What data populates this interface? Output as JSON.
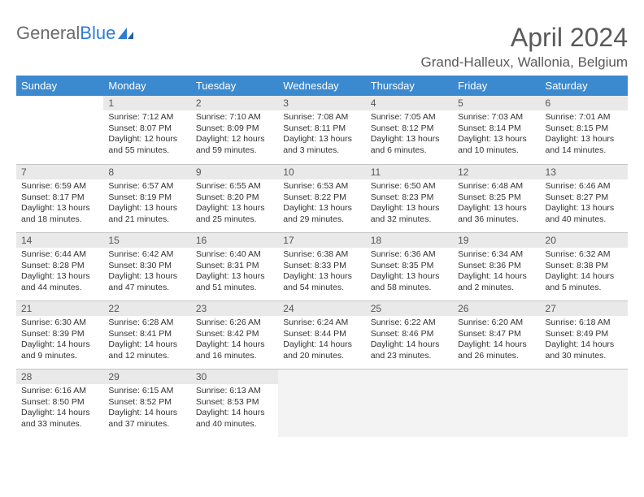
{
  "brand": {
    "part1": "General",
    "part2": "Blue"
  },
  "title": "April 2024",
  "location": "Grand-Halleux, Wallonia, Belgium",
  "colors": {
    "header_bg": "#3b8ad0",
    "header_text": "#ffffff",
    "daynum_bg": "#e9e9e9",
    "daynum_text": "#555555",
    "body_text": "#333333",
    "rule": "#c5c5c5",
    "title_color": "#5a5a5a",
    "brand_grey": "#6b6b6b",
    "brand_blue": "#2e7cd1"
  },
  "weekdays": [
    "Sunday",
    "Monday",
    "Tuesday",
    "Wednesday",
    "Thursday",
    "Friday",
    "Saturday"
  ],
  "weeks": [
    [
      {
        "n": "",
        "sr": "",
        "ss": "",
        "d1": "",
        "d2": ""
      },
      {
        "n": "1",
        "sr": "Sunrise: 7:12 AM",
        "ss": "Sunset: 8:07 PM",
        "d1": "Daylight: 12 hours",
        "d2": "and 55 minutes."
      },
      {
        "n": "2",
        "sr": "Sunrise: 7:10 AM",
        "ss": "Sunset: 8:09 PM",
        "d1": "Daylight: 12 hours",
        "d2": "and 59 minutes."
      },
      {
        "n": "3",
        "sr": "Sunrise: 7:08 AM",
        "ss": "Sunset: 8:11 PM",
        "d1": "Daylight: 13 hours",
        "d2": "and 3 minutes."
      },
      {
        "n": "4",
        "sr": "Sunrise: 7:05 AM",
        "ss": "Sunset: 8:12 PM",
        "d1": "Daylight: 13 hours",
        "d2": "and 6 minutes."
      },
      {
        "n": "5",
        "sr": "Sunrise: 7:03 AM",
        "ss": "Sunset: 8:14 PM",
        "d1": "Daylight: 13 hours",
        "d2": "and 10 minutes."
      },
      {
        "n": "6",
        "sr": "Sunrise: 7:01 AM",
        "ss": "Sunset: 8:15 PM",
        "d1": "Daylight: 13 hours",
        "d2": "and 14 minutes."
      }
    ],
    [
      {
        "n": "7",
        "sr": "Sunrise: 6:59 AM",
        "ss": "Sunset: 8:17 PM",
        "d1": "Daylight: 13 hours",
        "d2": "and 18 minutes."
      },
      {
        "n": "8",
        "sr": "Sunrise: 6:57 AM",
        "ss": "Sunset: 8:19 PM",
        "d1": "Daylight: 13 hours",
        "d2": "and 21 minutes."
      },
      {
        "n": "9",
        "sr": "Sunrise: 6:55 AM",
        "ss": "Sunset: 8:20 PM",
        "d1": "Daylight: 13 hours",
        "d2": "and 25 minutes."
      },
      {
        "n": "10",
        "sr": "Sunrise: 6:53 AM",
        "ss": "Sunset: 8:22 PM",
        "d1": "Daylight: 13 hours",
        "d2": "and 29 minutes."
      },
      {
        "n": "11",
        "sr": "Sunrise: 6:50 AM",
        "ss": "Sunset: 8:23 PM",
        "d1": "Daylight: 13 hours",
        "d2": "and 32 minutes."
      },
      {
        "n": "12",
        "sr": "Sunrise: 6:48 AM",
        "ss": "Sunset: 8:25 PM",
        "d1": "Daylight: 13 hours",
        "d2": "and 36 minutes."
      },
      {
        "n": "13",
        "sr": "Sunrise: 6:46 AM",
        "ss": "Sunset: 8:27 PM",
        "d1": "Daylight: 13 hours",
        "d2": "and 40 minutes."
      }
    ],
    [
      {
        "n": "14",
        "sr": "Sunrise: 6:44 AM",
        "ss": "Sunset: 8:28 PM",
        "d1": "Daylight: 13 hours",
        "d2": "and 44 minutes."
      },
      {
        "n": "15",
        "sr": "Sunrise: 6:42 AM",
        "ss": "Sunset: 8:30 PM",
        "d1": "Daylight: 13 hours",
        "d2": "and 47 minutes."
      },
      {
        "n": "16",
        "sr": "Sunrise: 6:40 AM",
        "ss": "Sunset: 8:31 PM",
        "d1": "Daylight: 13 hours",
        "d2": "and 51 minutes."
      },
      {
        "n": "17",
        "sr": "Sunrise: 6:38 AM",
        "ss": "Sunset: 8:33 PM",
        "d1": "Daylight: 13 hours",
        "d2": "and 54 minutes."
      },
      {
        "n": "18",
        "sr": "Sunrise: 6:36 AM",
        "ss": "Sunset: 8:35 PM",
        "d1": "Daylight: 13 hours",
        "d2": "and 58 minutes."
      },
      {
        "n": "19",
        "sr": "Sunrise: 6:34 AM",
        "ss": "Sunset: 8:36 PM",
        "d1": "Daylight: 14 hours",
        "d2": "and 2 minutes."
      },
      {
        "n": "20",
        "sr": "Sunrise: 6:32 AM",
        "ss": "Sunset: 8:38 PM",
        "d1": "Daylight: 14 hours",
        "d2": "and 5 minutes."
      }
    ],
    [
      {
        "n": "21",
        "sr": "Sunrise: 6:30 AM",
        "ss": "Sunset: 8:39 PM",
        "d1": "Daylight: 14 hours",
        "d2": "and 9 minutes."
      },
      {
        "n": "22",
        "sr": "Sunrise: 6:28 AM",
        "ss": "Sunset: 8:41 PM",
        "d1": "Daylight: 14 hours",
        "d2": "and 12 minutes."
      },
      {
        "n": "23",
        "sr": "Sunrise: 6:26 AM",
        "ss": "Sunset: 8:42 PM",
        "d1": "Daylight: 14 hours",
        "d2": "and 16 minutes."
      },
      {
        "n": "24",
        "sr": "Sunrise: 6:24 AM",
        "ss": "Sunset: 8:44 PM",
        "d1": "Daylight: 14 hours",
        "d2": "and 20 minutes."
      },
      {
        "n": "25",
        "sr": "Sunrise: 6:22 AM",
        "ss": "Sunset: 8:46 PM",
        "d1": "Daylight: 14 hours",
        "d2": "and 23 minutes."
      },
      {
        "n": "26",
        "sr": "Sunrise: 6:20 AM",
        "ss": "Sunset: 8:47 PM",
        "d1": "Daylight: 14 hours",
        "d2": "and 26 minutes."
      },
      {
        "n": "27",
        "sr": "Sunrise: 6:18 AM",
        "ss": "Sunset: 8:49 PM",
        "d1": "Daylight: 14 hours",
        "d2": "and 30 minutes."
      }
    ],
    [
      {
        "n": "28",
        "sr": "Sunrise: 6:16 AM",
        "ss": "Sunset: 8:50 PM",
        "d1": "Daylight: 14 hours",
        "d2": "and 33 minutes."
      },
      {
        "n": "29",
        "sr": "Sunrise: 6:15 AM",
        "ss": "Sunset: 8:52 PM",
        "d1": "Daylight: 14 hours",
        "d2": "and 37 minutes."
      },
      {
        "n": "30",
        "sr": "Sunrise: 6:13 AM",
        "ss": "Sunset: 8:53 PM",
        "d1": "Daylight: 14 hours",
        "d2": "and 40 minutes."
      },
      {
        "n": "",
        "sr": "",
        "ss": "",
        "d1": "",
        "d2": ""
      },
      {
        "n": "",
        "sr": "",
        "ss": "",
        "d1": "",
        "d2": ""
      },
      {
        "n": "",
        "sr": "",
        "ss": "",
        "d1": "",
        "d2": ""
      },
      {
        "n": "",
        "sr": "",
        "ss": "",
        "d1": "",
        "d2": ""
      }
    ]
  ]
}
